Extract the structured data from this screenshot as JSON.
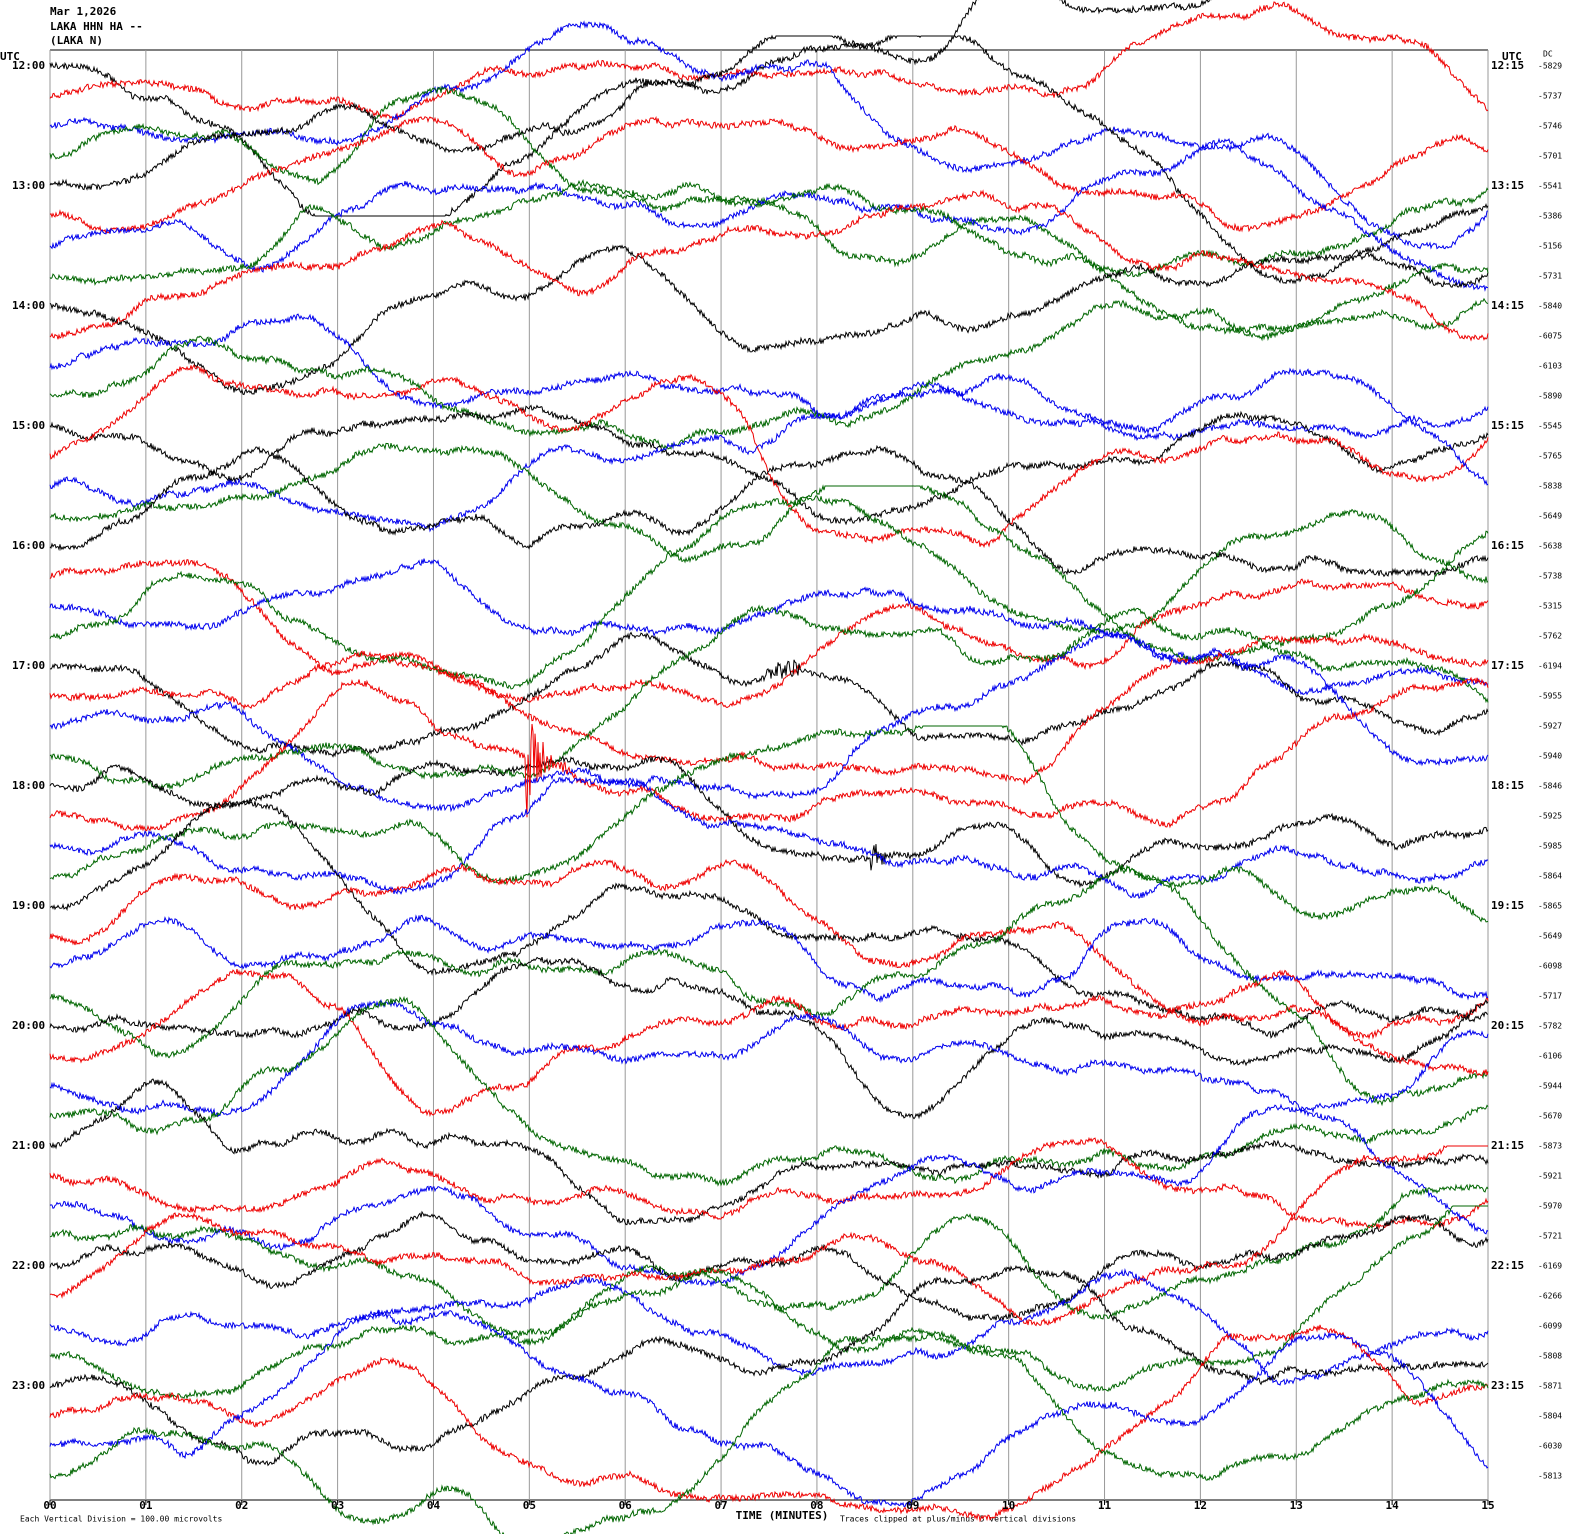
{
  "header": {
    "date": "Mar 1,2026",
    "station": "LAKA HHN HA --",
    "network": "(LAKA N)"
  },
  "left_axis": {
    "title": "UTC",
    "labels": [
      "12:00",
      "13:00",
      "14:00",
      "15:00",
      "16:00",
      "17:00",
      "18:00",
      "19:00",
      "20:00",
      "21:00",
      "22:00",
      "23:00"
    ]
  },
  "right_axis": {
    "title": "UTC",
    "labels": [
      "12:15",
      "13:15",
      "14:15",
      "15:15",
      "16:15",
      "17:15",
      "18:15",
      "19:15",
      "20:15",
      "21:15",
      "22:15",
      "23:15"
    ]
  },
  "dc": {
    "title": "DC",
    "labels": [
      "-5829",
      "-5737",
      "-5746",
      "-5701",
      "-5541",
      "-5386",
      "-5156",
      "-5731",
      "-5840",
      "-6075",
      "-6103",
      "-5890",
      "-5545",
      "-5765",
      "-5838",
      "-5649",
      "-5638",
      "-5738",
      "-5315",
      "-5762",
      "-6194",
      "-5955",
      "-5927",
      "-5940",
      "-5846",
      "-5925",
      "-5985",
      "-5864",
      "-5865",
      "-5649",
      "-6098",
      "-5717",
      "-5782",
      "-6106",
      "-5944",
      "-5670",
      "-5873",
      "-5921",
      "-5970",
      "-5721",
      "-6169",
      "-6266",
      "-6099",
      "-5808",
      "-5871",
      "-5804",
      "-6030",
      "-5813"
    ]
  },
  "x_axis": {
    "title": "TIME (MINUTES)",
    "labels": [
      "00",
      "01",
      "02",
      "03",
      "04",
      "05",
      "06",
      "07",
      "08",
      "09",
      "10",
      "11",
      "12",
      "13",
      "14",
      "15"
    ]
  },
  "footer": {
    "scale": "Each Vertical Division =  100.00 microvolts",
    "clip": "Traces clipped at plus/minus 5 vertical divisions"
  }
}
